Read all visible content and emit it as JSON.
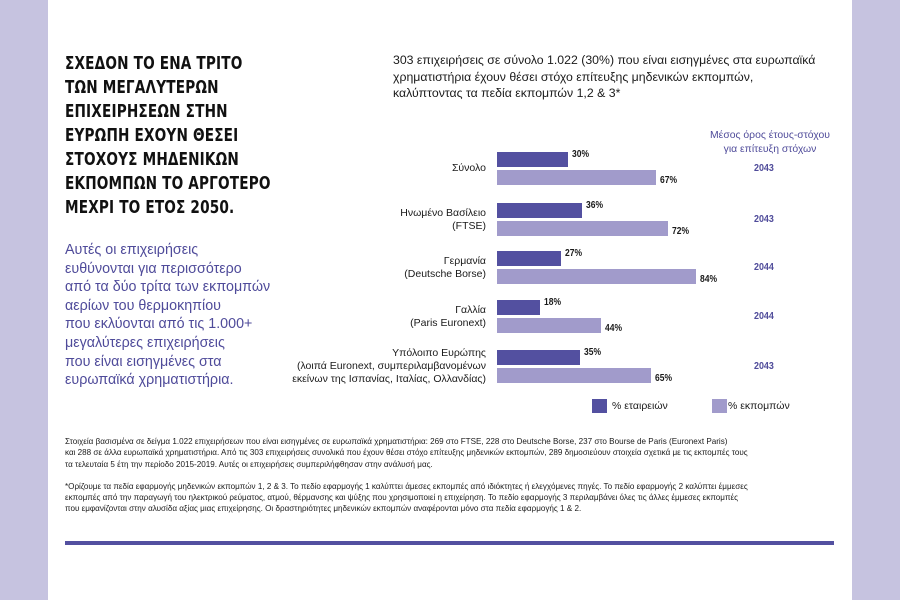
{
  "colors": {
    "side_panel": "#c6c3e0",
    "companies_bar": "#5350a0",
    "emissions_bar": "#a19bcb",
    "accent_text": "#4f4b9a"
  },
  "headline_lines": [
    "ΣΧΕΔΟΝ ΤΟ ΕΝΑ ΤΡΙΤΟ",
    "ΤΩΝ ΜΕΓΑΛΥΤΕΡΩΝ",
    "ΕΠΙΧΕΙΡΗΣΕΩΝ ΣΤΗΝ",
    "ΕΥΡΩΠΗ ΕΧΟΥΝ ΘΕΣΕΙ",
    "ΣΤΟΧΟΥΣ ΜΗΔΕΝΙΚΩΝ",
    "ΕΚΠΟΜΠΩΝ ΤΟ ΑΡΓΟΤΕΡΟ",
    "ΜΕΧΡΙ ΤΟ ΕΤΟΣ 2050."
  ],
  "subtext_lines": [
    "Αυτές οι επιχειρήσεις",
    "ευθύνονται για περισσότερο",
    "από τα δύο τρίτα των εκπομπών",
    "αερίων του θερμοκηπίου",
    "που εκλύονται από τις 1.000+",
    "μεγαλύτερες επιχειρήσεις",
    "που είναι εισηγμένες στα",
    "ευρωπαϊκά χρηματιστήρια."
  ],
  "chart_data": {
    "type": "bar",
    "orientation": "horizontal",
    "title_lines": [
      "303 επιχειρήσεις σε σύνολο 1.022 (30%) που είναι εισηγμένες στα ευρωπαϊκά",
      "χρηματιστήρια έχουν θέσει στόχο επίτευξης μηδενικών εκπομπών,",
      "καλύπτοντας τα πεδία εκπομπών 1,2 & 3*"
    ],
    "categories": [
      [
        "Σύνολο"
      ],
      [
        "Ηνωμένο Βασίλειο",
        "(FTSE)"
      ],
      [
        "Γερμανία",
        "(Deutsche Borse)"
      ],
      [
        "Γαλλία",
        "(Paris Euronext)"
      ],
      [
        "Υπόλοιπο Ευρώπης",
        "(λοιπά Euronext, συμπεριλαμβανομένων",
        "εκείνων της Ισπανίας, Ιταλίας, Ολλανδίας)"
      ]
    ],
    "series": [
      {
        "name": "% εταιρειών",
        "values": [
          30,
          36,
          27,
          18,
          35
        ],
        "labels": [
          "30%",
          "36%",
          "27%",
          "18%",
          "35%"
        ]
      },
      {
        "name": "% εκπομπών",
        "values": [
          67,
          72,
          84,
          44,
          65
        ],
        "labels": [
          "67%",
          "72%",
          "84%",
          "44%",
          "65%"
        ]
      }
    ],
    "xlim": [
      0,
      100
    ],
    "grid": false,
    "legend_position": "bottom",
    "side_column": {
      "title_lines": [
        "Μέσος όρος έτους-στόχου",
        "για επίτευξη στόχων"
      ],
      "values": [
        "2043",
        "2043",
        "2044",
        "2044",
        "2043"
      ]
    }
  },
  "notes": {
    "sample_lines": [
      "Στοιχεία βασισμένα σε δείγμα 1.022 επιχειρήσεων που είναι εισηγμένες σε ευρωπαϊκά χρηματιστήρια: 269 στο FTSE, 228 στο Deutsche Borse, 237 στο Bourse de Paris (Euronext Paris)",
      "και 288 σε άλλα ευρωπαϊκά χρηματιστήρια. Από τις 303 επιχειρήσεις συνολικά που έχουν θέσει στόχο επίτευξης μηδενικών εκπομπών, 289 δημοσιεύουν στοιχεία σχετικά με τις εκπομπές τους",
      "τα τελευταία 5 έτη την περίοδο 2015-2019. Αυτές οι επιχειρήσεις συμπεριλήφθησαν στην ανάλυσή μας."
    ],
    "footnote_lines": [
      "*Ορίζουμε τα πεδία εφαρμογής μηδενικών εκπομπών 1, 2 & 3. Το πεδίο εφαρμογής 1 καλύπτει άμεσες εκπομπές από ιδιόκτητες ή ελεγχόμενες πηγές. Το πεδίο εφαρμογής 2 καλύπτει έμμεσες",
      "εκπομπές από την παραγωγή του ηλεκτρικού ρεύματος, ατμού, θέρμανσης και ψύξης που χρησιμοποιεί η επιχείρηση.  Το πεδίο εφαρμογής 3 περιλαμβάνει όλες τις άλλες έμμεσες εκπομπές",
      "που εμφανίζονται στην αλυσίδα αξίας μιας επιχείρησης. Οι δραστηριότητες μηδενικών εκπομπών αναφέρονται μόνο στα πεδία εφαρμογής 1 & 2."
    ]
  }
}
